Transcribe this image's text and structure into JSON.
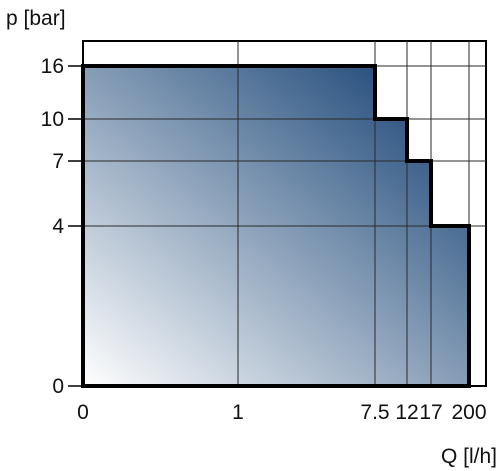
{
  "chart_data": {
    "type": "area",
    "ylabel": "p [bar]",
    "xlabel": "Q [l/h]",
    "x_ticks": [
      "0",
      "1",
      "7.5",
      "12",
      "17",
      "200"
    ],
    "y_ticks": [
      "16",
      "10",
      "7",
      "4",
      "0"
    ],
    "x": [
      "0",
      "7.5",
      "12",
      "17",
      "200"
    ],
    "values": [
      16,
      10,
      7,
      4,
      0
    ],
    "step_profile": [
      {
        "q_from": "0",
        "q_to": "7.5",
        "p": 16
      },
      {
        "q_from": "7.5",
        "q_to": "12",
        "p": 10
      },
      {
        "q_from": "12",
        "q_to": "17",
        "p": 7
      },
      {
        "q_from": "17",
        "q_to": "200",
        "p": 4
      }
    ],
    "grid": true,
    "colors": {
      "fill_dark": "#0c3a6e",
      "fill_light": "#ffffff",
      "outline": "#000000",
      "grid": "#2a2a2a"
    }
  }
}
